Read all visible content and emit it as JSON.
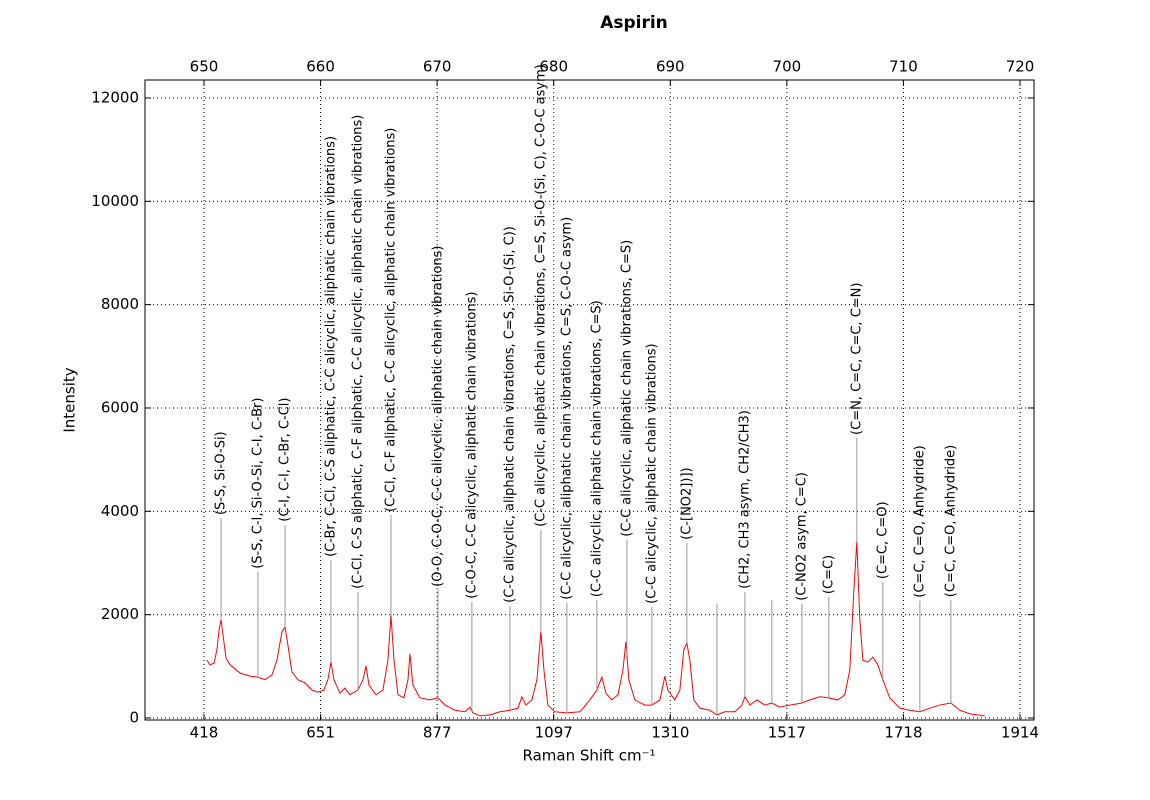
{
  "chart_data": {
    "type": "line",
    "title": "Aspirin",
    "xlabel": "Raman Shift cm⁻¹",
    "ylabel": "Intensity",
    "xlim": [
      644.94,
      721.2
    ],
    "ylim": [
      -39,
      12348
    ],
    "xticks": [
      650,
      660,
      670,
      680,
      690,
      700,
      710,
      720
    ],
    "x2ticks": [
      {
        "value": 650,
        "label": "418"
      },
      {
        "value": 660,
        "label": "651"
      },
      {
        "value": 670,
        "label": "877"
      },
      {
        "value": 680,
        "label": "1097"
      },
      {
        "value": 690,
        "label": "1310"
      },
      {
        "value": 700,
        "label": "1517"
      },
      {
        "value": 710,
        "label": "1718"
      },
      {
        "value": 720,
        "label": "1914"
      }
    ],
    "yticks": [
      0,
      2000,
      4000,
      6000,
      8000,
      10000,
      12000
    ],
    "grid": true,
    "x": [
      650.26,
      650.51,
      650.86,
      651.11,
      651.29,
      651.46,
      651.63,
      651.89,
      652.23,
      653.09,
      653.95,
      654.63,
      655.23,
      655.83,
      656.26,
      656.69,
      656.95,
      657.2,
      657.55,
      658.06,
      658.66,
      659.26,
      659.78,
      660.29,
      660.63,
      660.89,
      661.15,
      661.66,
      662.09,
      662.52,
      663.21,
      663.64,
      663.9,
      664.15,
      664.75,
      665.35,
      665.78,
      666.04,
      666.3,
      666.64,
      667.15,
      667.5,
      667.67,
      667.92,
      668.52,
      669.38,
      670.07,
      670.67,
      671.53,
      672.39,
      672.81,
      673.07,
      673.67,
      674.53,
      675.39,
      676.24,
      676.93,
      677.27,
      677.62,
      678.13,
      678.56,
      678.9,
      679.16,
      679.5,
      680.1,
      681.13,
      682.25,
      683.1,
      683.7,
      684.13,
      684.48,
      684.99,
      685.51,
      685.94,
      686.19,
      686.45,
      686.96,
      687.82,
      688.42,
      689.11,
      689.54,
      689.79,
      690.39,
      690.82,
      691.16,
      691.42,
      691.68,
      692.02,
      692.54,
      693.4,
      694.0,
      694.68,
      695.54,
      696.14,
      696.4,
      696.83,
      697.43,
      698.11,
      698.71,
      699.4,
      700.26,
      701.29,
      701.97,
      702.83,
      703.6,
      704.37,
      704.97,
      705.4,
      705.75,
      706.0,
      706.26,
      706.52,
      706.95,
      707.38,
      707.8,
      708.23,
      708.83,
      709.69,
      710.55,
      711.41,
      712.26,
      713.12,
      714.07,
      714.84,
      715.69,
      716.98
    ],
    "series": [
      {
        "color": "#ff0000",
        "values": [
          1120,
          1030,
          1060,
          1320,
          1700,
          1900,
          1610,
          1160,
          1030,
          870,
          810,
          790,
          740,
          830,
          1120,
          1670,
          1760,
          1410,
          890,
          740,
          680,
          540,
          500,
          540,
          740,
          1080,
          740,
          480,
          580,
          450,
          540,
          740,
          1010,
          640,
          450,
          540,
          1120,
          1990,
          1120,
          450,
          390,
          740,
          1240,
          640,
          390,
          350,
          390,
          250,
          150,
          120,
          210,
          100,
          40,
          60,
          120,
          150,
          190,
          410,
          250,
          350,
          740,
          1670,
          930,
          250,
          120,
          100,
          120,
          350,
          540,
          790,
          480,
          350,
          450,
          930,
          1470,
          740,
          350,
          250,
          250,
          350,
          810,
          540,
          350,
          540,
          1320,
          1450,
          1120,
          350,
          190,
          150,
          60,
          120,
          120,
          250,
          410,
          250,
          350,
          250,
          290,
          210,
          250,
          290,
          350,
          410,
          390,
          350,
          450,
          930,
          2480,
          3410,
          1900,
          1120,
          1080,
          1180,
          1030,
          740,
          390,
          190,
          150,
          120,
          190,
          250,
          290,
          150,
          80,
          40
        ]
      }
    ],
    "annotations": [
      {
        "text": "(S-S, Si-O-Si)",
        "x": 651.46,
        "y": 3870
      },
      {
        "text": "(S-S, C-I, Si-O-Si, C-I, C-Br)",
        "x": 654.63,
        "y": 2830
      },
      {
        "text": "(C-I, C-I, C-Br, C-Cl)",
        "x": 656.95,
        "y": 3740
      },
      {
        "text": "(C-Br, C-Cl, C-S aliphatic, C-C alicyclic, aliphatic chain vibrations)",
        "x": 660.89,
        "y": 3060
      },
      {
        "text": "(C-Cl, C-S aliphatic, C-F aliphatic, C-C alicyclic, aliphatic chain vibrations)",
        "x": 663.21,
        "y": 2440
      },
      {
        "text": "(C-Cl, C-F aliphatic, C-C alicyclic, aliphatic chain vibrations)",
        "x": 666.04,
        "y": 3930
      },
      {
        "text": "(O-O, C-O-C, C-C alicyclic, aliphatic chain vibrations)",
        "x": 670.07,
        "y": 2480
      },
      {
        "text": "(C-O-C, C-C alicyclic, aliphatic chain vibrations)",
        "x": 672.98,
        "y": 2250
      },
      {
        "text": "(C-C alicyclic, aliphatic chain vibrations, C=S, Si-O-(Si, C))",
        "x": 676.24,
        "y": 2170
      },
      {
        "text": "(C-C alicyclic, aliphatic chain vibrations, C=S, Si-O-(Si, C), C-O-C asym)",
        "x": 678.9,
        "y": 3640
      },
      {
        "text": "(C-C alicyclic, aliphatic chain vibrations, C=S, C-O-C asym)",
        "x": 681.13,
        "y": 2230
      },
      {
        "text": "(C-C alicyclic, aliphatic chain vibrations, C=S)",
        "x": 683.7,
        "y": 2280
      },
      {
        "text": "(C-C alicyclic, aliphatic chain vibrations, C=S)",
        "x": 686.28,
        "y": 3450
      },
      {
        "text": "(C-C alicyclic, aliphatic chain vibrations)",
        "x": 688.42,
        "y": 2150
      },
      {
        "text": "(C-[NO2])])",
        "x": 691.42,
        "y": 3390
      },
      {
        "text": null,
        "x": 694.0,
        "y": 2210
      },
      {
        "text": "(CH2, CH3 asym, CH2/CH3)",
        "x": 696.4,
        "y": 2440
      },
      {
        "text": null,
        "x": 698.71,
        "y": 2280
      },
      {
        "text": "(C-NO2 asym, C=C)",
        "x": 701.29,
        "y": 2210
      },
      {
        "text": "(C=C)",
        "x": 703.6,
        "y": 2340
      },
      {
        "text": "(C=N, C=C, C=C, C=N)",
        "x": 706.0,
        "y": 5420
      },
      {
        "text": "(C=C, C=O)",
        "x": 708.23,
        "y": 2630
      },
      {
        "text": "(C=C, C=O, Anhydride)",
        "x": 711.41,
        "y": 2270
      },
      {
        "text": "(C=C, C=O, Anhydride)",
        "x": 714.07,
        "y": 2280
      }
    ]
  }
}
